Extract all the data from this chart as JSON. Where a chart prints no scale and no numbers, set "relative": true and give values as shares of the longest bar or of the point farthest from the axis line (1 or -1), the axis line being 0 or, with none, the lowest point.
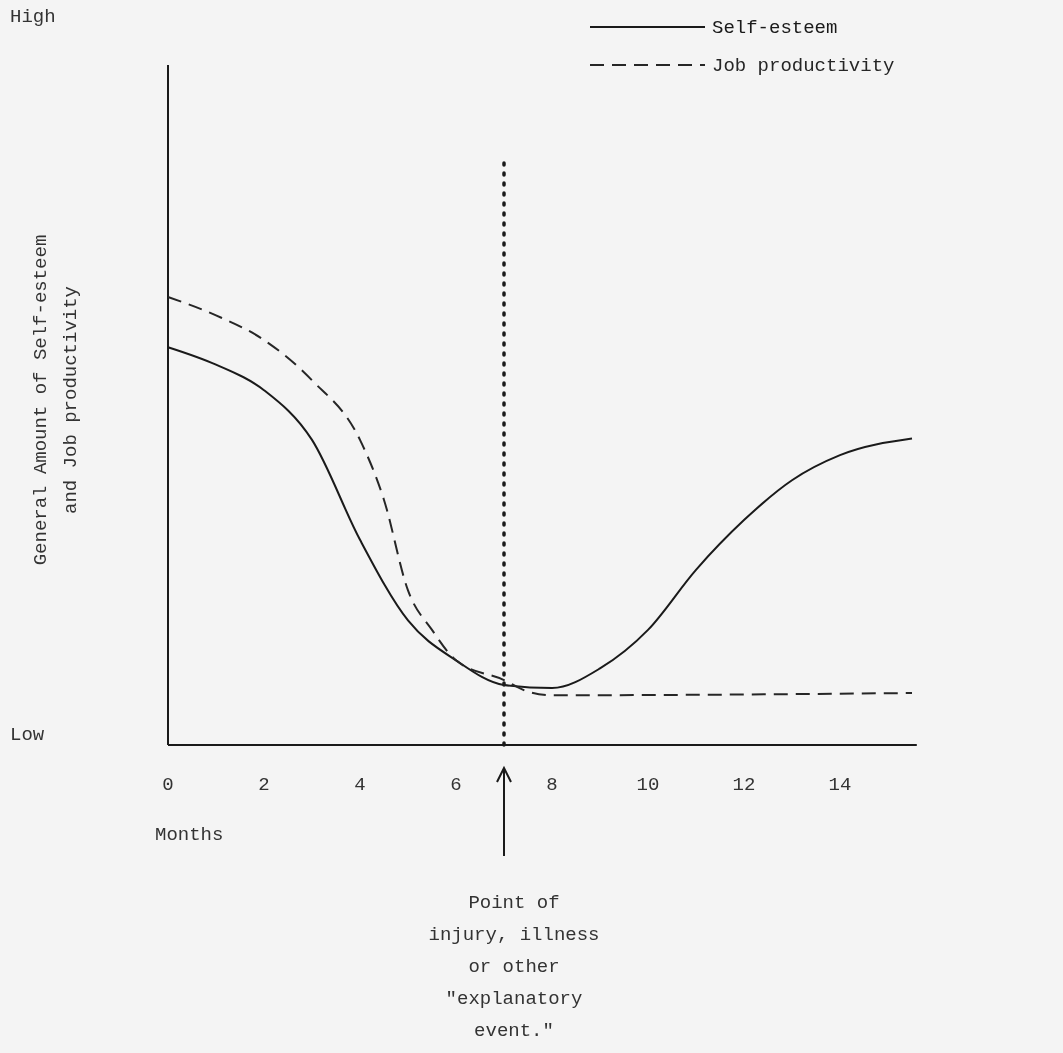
{
  "chart_data": {
    "type": "line",
    "xlabel": "Months",
    "ylabel": "General Amount of Self-esteem\nand Job productivity",
    "xlim": [
      0,
      15.6
    ],
    "xticks": [
      0,
      2,
      4,
      6,
      8,
      10,
      12,
      14
    ],
    "relative": true,
    "legend": "top right",
    "marker": "none",
    "series": [
      {
        "name": "Self-esteem",
        "color": "#1a1a1a",
        "line_style": "solid",
        "x": [
          0,
          1,
          2,
          3,
          4,
          5,
          6,
          7,
          8,
          9,
          10,
          11,
          12,
          13,
          14,
          15.5
        ],
        "values": [
          0.888,
          0.849,
          0.792,
          0.681,
          0.458,
          0.278,
          0.189,
          0.134,
          0.127,
          0.171,
          0.257,
          0.391,
          0.502,
          0.591,
          0.647,
          0.684
        ]
      },
      {
        "name": "Job productivity",
        "color": "#262626",
        "line_style": "dashed",
        "x": [
          0,
          1,
          2,
          3,
          4,
          4.5,
          5,
          5.5,
          6,
          7,
          7.5,
          8,
          15.5
        ],
        "values": [
          1,
          0.959,
          0.904,
          0.814,
          0.681,
          0.547,
          0.345,
          0.257,
          0.189,
          0.145,
          0.119,
          0.111,
          0.116
        ]
      }
    ],
    "ref_lines": [
      {
        "axis": "x",
        "value": 7,
        "line_style": "dotted",
        "color": "#1a1a1a"
      }
    ],
    "annotations": [
      "High",
      "Low",
      "Point of\ninjury, illness\nor other\n\"explanatory\nevent.\""
    ]
  }
}
